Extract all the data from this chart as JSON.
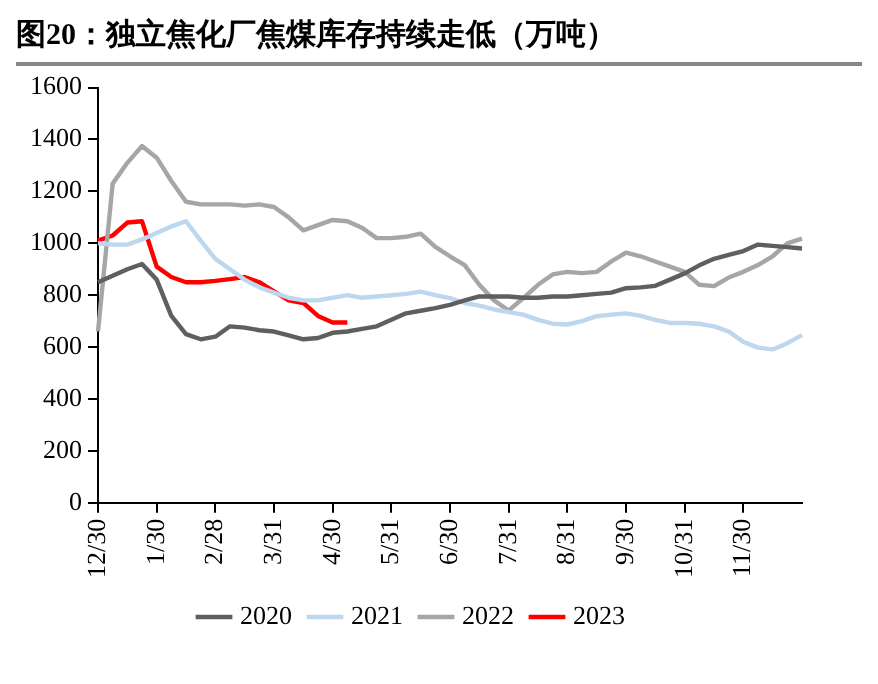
{
  "chart_data": {
    "type": "line",
    "title": "图20：独立焦化厂焦煤库存持续走低（万吨）",
    "categories": [
      "12/30",
      null,
      null,
      null,
      "1/30",
      null,
      null,
      null,
      "2/28",
      null,
      null,
      null,
      "3/31",
      null,
      null,
      null,
      "4/30",
      null,
      null,
      null,
      "5/31",
      null,
      null,
      null,
      "6/30",
      null,
      null,
      null,
      "7/31",
      null,
      null,
      null,
      "8/31",
      null,
      null,
      null,
      "9/30",
      null,
      null,
      null,
      "10/31",
      null,
      null,
      null,
      "11/30",
      null,
      null,
      null,
      null
    ],
    "series": [
      {
        "name": "2020",
        "color": "#5f5f5f",
        "values": [
          850,
          875,
          900,
          920,
          860,
          720,
          650,
          630,
          640,
          680,
          675,
          665,
          660,
          645,
          630,
          635,
          655,
          660,
          670,
          680,
          705,
          730,
          740,
          750,
          763,
          780,
          795,
          795,
          795,
          790,
          790,
          795,
          795,
          800,
          805,
          810,
          827,
          830,
          836,
          860,
          884,
          915,
          940,
          955,
          970,
          995,
          990,
          985,
          980
        ]
      },
      {
        "name": "2021",
        "color": "#bdd7ee",
        "values": [
          1000,
          995,
          995,
          1015,
          1040,
          1065,
          1085,
          1010,
          940,
          900,
          860,
          830,
          810,
          790,
          780,
          780,
          790,
          800,
          790,
          795,
          800,
          805,
          814,
          800,
          789,
          770,
          760,
          745,
          735,
          725,
          705,
          690,
          687,
          700,
          719,
          725,
          730,
          720,
          705,
          693,
          693,
          690,
          680,
          660,
          620,
          598,
          591,
          615,
          646
        ]
      },
      {
        "name": "2022",
        "color": "#a6a6a6",
        "values": [
          660,
          1230,
          1310,
          1375,
          1330,
          1240,
          1160,
          1150,
          1150,
          1150,
          1145,
          1150,
          1140,
          1100,
          1050,
          1070,
          1090,
          1085,
          1060,
          1020,
          1020,
          1025,
          1037,
          986,
          950,
          916,
          840,
          780,
          741,
          789,
          840,
          880,
          890,
          885,
          890,
          930,
          964,
          950,
          930,
          910,
          890,
          840,
          835,
          868,
          890,
          916,
          950,
          1000,
          1018
        ]
      },
      {
        "name": "2023",
        "color": "#ff0000",
        "values": [
          1010,
          1030,
          1080,
          1085,
          910,
          870,
          850,
          850,
          855,
          862,
          870,
          850,
          815,
          780,
          770,
          720,
          695,
          695,
          null,
          null,
          null,
          null,
          null,
          null,
          null,
          null,
          null,
          null,
          null,
          null,
          null,
          null,
          null,
          null,
          null,
          null,
          null,
          null,
          null,
          null,
          null,
          null,
          null,
          null,
          null,
          null,
          null,
          null,
          null
        ]
      }
    ],
    "ylim": [
      0,
      1600
    ],
    "yticks": [
      0,
      200,
      400,
      600,
      800,
      1000,
      1200,
      1400,
      1600
    ],
    "grid": false,
    "legend": "bottom",
    "marker": "none",
    "line_style": "solid"
  }
}
